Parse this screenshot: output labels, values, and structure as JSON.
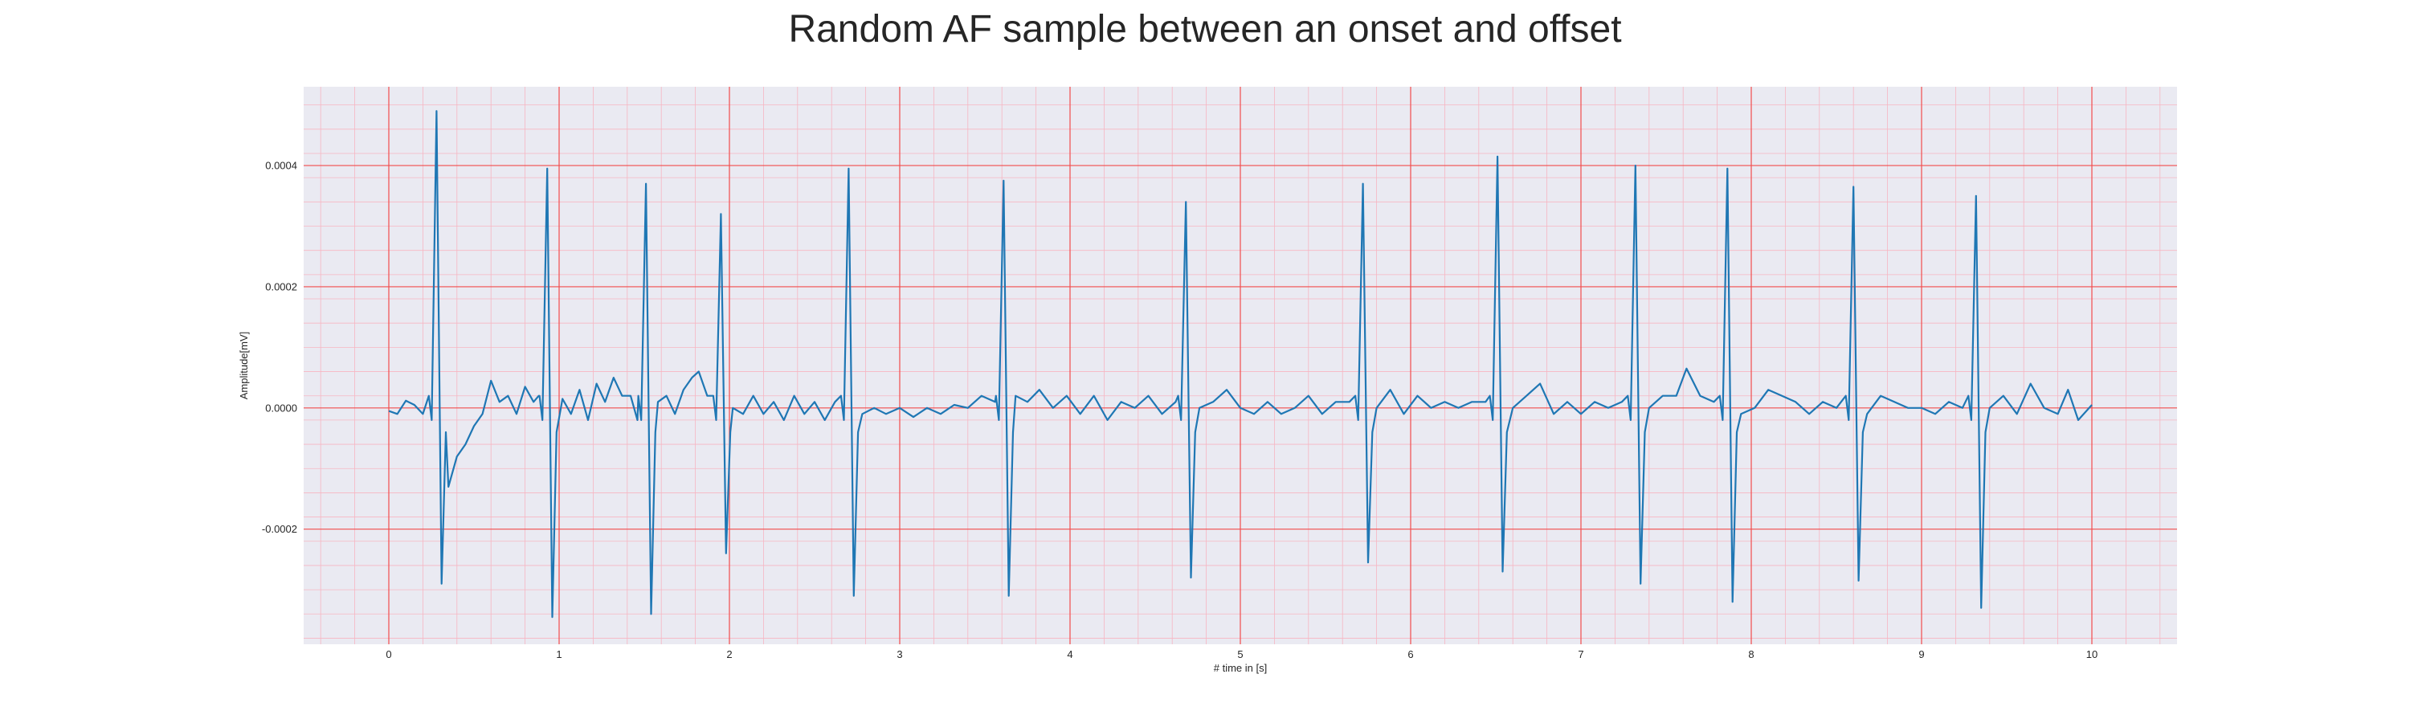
{
  "chart_data": {
    "type": "line",
    "title": "Random AF sample between an onset and offset",
    "xlabel": "# time in [s]",
    "ylabel": "Amplitude[mV]",
    "xlim": [
      -0.5,
      10.5
    ],
    "ylim": [
      -0.00039,
      0.00053
    ],
    "x_ticks": [
      0,
      1,
      2,
      3,
      4,
      5,
      6,
      7,
      8,
      9,
      10
    ],
    "x_tick_labels": [
      "0",
      "1",
      "2",
      "3",
      "4",
      "5",
      "6",
      "7",
      "8",
      "9",
      "10"
    ],
    "y_ticks": [
      0.0004,
      0.0002,
      0.0,
      -0.0002
    ],
    "y_tick_labels": [
      "0.0004",
      "0.0002",
      "0.0000",
      "-0.0002"
    ],
    "grid": true,
    "major_grid_color": "#f24c4c",
    "minor_grid_color": "#f7b6c2",
    "background_color": "#eaeaf2",
    "series": [
      {
        "color": "#1f77b4",
        "beats": [
          {
            "t": 0.28,
            "r": 0.00049,
            "s": -0.00029
          },
          {
            "t": 0.93,
            "r": 0.000395,
            "s": -0.000345
          },
          {
            "t": 1.51,
            "r": 0.00037,
            "s": -0.00034
          },
          {
            "t": 1.95,
            "r": 0.00032,
            "s": -0.00024
          },
          {
            "t": 2.7,
            "r": 0.000395,
            "s": -0.00031
          },
          {
            "t": 3.61,
            "r": 0.000375,
            "s": -0.00031
          },
          {
            "t": 4.68,
            "r": 0.00034,
            "s": -0.00028
          },
          {
            "t": 5.72,
            "r": 0.00037,
            "s": -0.000255
          },
          {
            "t": 6.51,
            "r": 0.000415,
            "s": -0.00027
          },
          {
            "t": 7.32,
            "r": 0.0004,
            "s": -0.00029
          },
          {
            "t": 7.86,
            "r": 0.000395,
            "s": -0.00032
          },
          {
            "t": 8.6,
            "r": 0.000365,
            "s": -0.000285
          },
          {
            "t": 9.32,
            "r": 0.00035,
            "s": -0.00033
          }
        ],
        "baseline": [
          [
            0.0,
            -5e-06
          ],
          [
            0.05,
            -1e-05
          ],
          [
            0.1,
            1.2e-05
          ],
          [
            0.15,
            5e-06
          ],
          [
            0.2,
            -1e-05
          ],
          [
            0.35,
            -0.00013
          ],
          [
            0.4,
            -8e-05
          ],
          [
            0.45,
            -6e-05
          ],
          [
            0.5,
            -3e-05
          ],
          [
            0.55,
            -1e-05
          ],
          [
            0.6,
            4.5e-05
          ],
          [
            0.65,
            1e-05
          ],
          [
            0.7,
            2e-05
          ],
          [
            0.75,
            -1e-05
          ],
          [
            0.8,
            3.5e-05
          ],
          [
            0.85,
            1e-05
          ],
          [
            0.88,
            2e-05
          ],
          [
            1.02,
            1.5e-05
          ],
          [
            1.07,
            -1e-05
          ],
          [
            1.12,
            3e-05
          ],
          [
            1.17,
            -2e-05
          ],
          [
            1.22,
            4e-05
          ],
          [
            1.27,
            1e-05
          ],
          [
            1.32,
            5e-05
          ],
          [
            1.37,
            2e-05
          ],
          [
            1.42,
            2e-05
          ],
          [
            1.46,
            -2e-05
          ],
          [
            1.58,
            1e-05
          ],
          [
            1.63,
            2e-05
          ],
          [
            1.68,
            -1e-05
          ],
          [
            1.73,
            3e-05
          ],
          [
            1.78,
            5e-05
          ],
          [
            1.82,
            6e-05
          ],
          [
            1.87,
            2e-05
          ],
          [
            1.91,
            1e-05
          ],
          [
            2.02,
            0.0
          ],
          [
            2.08,
            -1e-05
          ],
          [
            2.14,
            2e-05
          ],
          [
            2.2,
            -1e-05
          ],
          [
            2.26,
            1e-05
          ],
          [
            2.32,
            -2e-05
          ],
          [
            2.38,
            2e-05
          ],
          [
            2.44,
            -1e-05
          ],
          [
            2.5,
            1e-05
          ],
          [
            2.56,
            -2e-05
          ],
          [
            2.62,
            1e-05
          ],
          [
            2.66,
            2e-05
          ],
          [
            2.78,
            -1e-05
          ],
          [
            2.85,
            0.0
          ],
          [
            2.92,
            -1e-05
          ],
          [
            3.0,
            0.0
          ],
          [
            3.08,
            -1.5e-05
          ],
          [
            3.16,
            0.0
          ],
          [
            3.24,
            -1e-05
          ],
          [
            3.32,
            5e-06
          ],
          [
            3.4,
            0.0
          ],
          [
            3.48,
            2e-05
          ],
          [
            3.56,
            1e-05
          ],
          [
            3.68,
            2e-05
          ],
          [
            3.75,
            1e-05
          ],
          [
            3.82,
            3e-05
          ],
          [
            3.9,
            0.0
          ],
          [
            3.98,
            2e-05
          ],
          [
            4.06,
            -1e-05
          ],
          [
            4.14,
            2e-05
          ],
          [
            4.22,
            -2e-05
          ],
          [
            4.3,
            1e-05
          ],
          [
            4.38,
            0.0
          ],
          [
            4.46,
            2e-05
          ],
          [
            4.54,
            -1e-05
          ],
          [
            4.62,
            1e-05
          ],
          [
            4.76,
            0.0
          ],
          [
            4.84,
            1e-05
          ],
          [
            4.92,
            3e-05
          ],
          [
            5.0,
            0.0
          ],
          [
            5.08,
            -1e-05
          ],
          [
            5.16,
            1e-05
          ],
          [
            5.24,
            -1e-05
          ],
          [
            5.32,
            0.0
          ],
          [
            5.4,
            2e-05
          ],
          [
            5.48,
            -1e-05
          ],
          [
            5.56,
            1e-05
          ],
          [
            5.64,
            1e-05
          ],
          [
            5.8,
            0.0
          ],
          [
            5.88,
            3e-05
          ],
          [
            5.96,
            -1e-05
          ],
          [
            6.04,
            2e-05
          ],
          [
            6.12,
            0.0
          ],
          [
            6.2,
            1e-05
          ],
          [
            6.28,
            0.0
          ],
          [
            6.36,
            1e-05
          ],
          [
            6.44,
            1e-05
          ],
          [
            6.6,
            0.0
          ],
          [
            6.68,
            2e-05
          ],
          [
            6.76,
            4e-05
          ],
          [
            6.84,
            -1e-05
          ],
          [
            6.92,
            1e-05
          ],
          [
            7.0,
            -1e-05
          ],
          [
            7.08,
            1e-05
          ],
          [
            7.16,
            0.0
          ],
          [
            7.24,
            1e-05
          ],
          [
            7.4,
            0.0
          ],
          [
            7.48,
            2e-05
          ],
          [
            7.56,
            2e-05
          ],
          [
            7.62,
            6.5e-05
          ],
          [
            7.7,
            2e-05
          ],
          [
            7.78,
            1e-05
          ],
          [
            7.82,
            1e-05
          ],
          [
            7.94,
            -1e-05
          ],
          [
            8.02,
            0.0
          ],
          [
            8.1,
            3e-05
          ],
          [
            8.18,
            2e-05
          ],
          [
            8.26,
            1e-05
          ],
          [
            8.34,
            -1e-05
          ],
          [
            8.42,
            1e-05
          ],
          [
            8.5,
            0.0
          ],
          [
            8.56,
            1e-05
          ],
          [
            8.68,
            -1e-05
          ],
          [
            8.76,
            2e-05
          ],
          [
            8.84,
            1e-05
          ],
          [
            8.92,
            0.0
          ],
          [
            9.0,
            0.0
          ],
          [
            9.08,
            -1e-05
          ],
          [
            9.16,
            1e-05
          ],
          [
            9.24,
            0.0
          ],
          [
            9.28,
            1e-05
          ],
          [
            9.4,
            0.0
          ],
          [
            9.48,
            2e-05
          ],
          [
            9.56,
            -1e-05
          ],
          [
            9.64,
            4e-05
          ],
          [
            9.72,
            0.0
          ],
          [
            9.8,
            -1e-05
          ],
          [
            9.86,
            3e-05
          ],
          [
            9.92,
            -2e-05
          ],
          [
            10.0,
            5e-06
          ]
        ]
      }
    ]
  }
}
